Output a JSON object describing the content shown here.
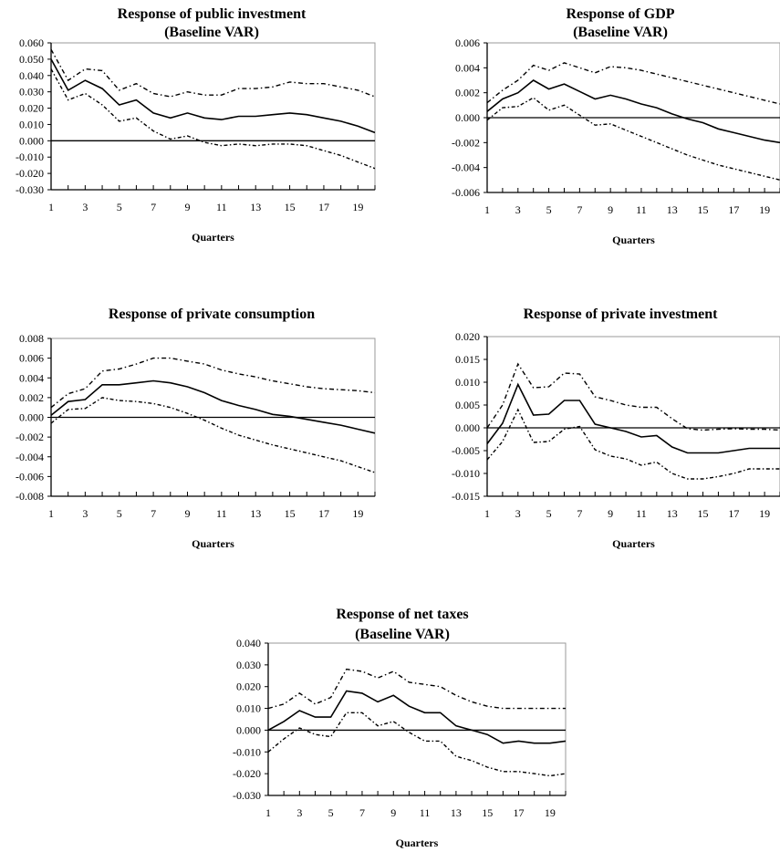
{
  "chart_data": [
    {
      "type": "line",
      "title": "Response of public investment",
      "subtitle": "(Baseline VAR)",
      "xlabel": "Quarters",
      "ylabel": "",
      "ylim": [
        -0.03,
        0.06
      ],
      "yticks": [
        "0.060",
        "0.050",
        "0.040",
        "0.030",
        "0.020",
        "0.010",
        "0.000",
        "-0.010",
        "-0.020",
        "-0.030"
      ],
      "xticks": [
        "1",
        "3",
        "5",
        "7",
        "9",
        "11",
        "13",
        "15",
        "17",
        "19"
      ],
      "x": [
        1,
        2,
        3,
        4,
        5,
        6,
        7,
        8,
        9,
        10,
        11,
        12,
        13,
        14,
        15,
        16,
        17,
        18,
        19,
        20
      ],
      "series": [
        {
          "role": "response",
          "values": [
            0.05,
            0.031,
            0.037,
            0.032,
            0.022,
            0.025,
            0.017,
            0.014,
            0.017,
            0.014,
            0.013,
            0.015,
            0.015,
            0.016,
            0.017,
            0.016,
            0.014,
            0.012,
            0.009,
            0.005
          ]
        },
        {
          "role": "upper",
          "values": [
            0.056,
            0.037,
            0.044,
            0.043,
            0.031,
            0.035,
            0.029,
            0.027,
            0.03,
            0.028,
            0.028,
            0.032,
            0.032,
            0.033,
            0.036,
            0.035,
            0.035,
            0.033,
            0.031,
            0.027
          ]
        },
        {
          "role": "lower",
          "values": [
            0.044,
            0.025,
            0.029,
            0.022,
            0.012,
            0.014,
            0.006,
            0.001,
            0.003,
            -0.001,
            -0.003,
            -0.002,
            -0.003,
            -0.002,
            -0.002,
            -0.003,
            -0.006,
            -0.009,
            -0.013,
            -0.017
          ]
        }
      ]
    },
    {
      "type": "line",
      "title": "Response of GDP",
      "subtitle": "(Baseline VAR)",
      "xlabel": "Quarters",
      "ylabel": "",
      "ylim": [
        -0.006,
        0.006
      ],
      "yticks": [
        "0.006",
        "0.004",
        "0.002",
        "0.000",
        "-0.002",
        "-0.004",
        "-0.006"
      ],
      "xticks": [
        "1",
        "3",
        "5",
        "7",
        "9",
        "11",
        "13",
        "15",
        "17",
        "19"
      ],
      "x": [
        1,
        2,
        3,
        4,
        5,
        6,
        7,
        8,
        9,
        10,
        11,
        12,
        13,
        14,
        15,
        16,
        17,
        18,
        19,
        20
      ],
      "series": [
        {
          "role": "response",
          "values": [
            0.0005,
            0.0015,
            0.002,
            0.003,
            0.0023,
            0.0027,
            0.0021,
            0.0015,
            0.0018,
            0.0015,
            0.0011,
            0.0008,
            0.0003,
            -0.0001,
            -0.0004,
            -0.0009,
            -0.0012,
            -0.0015,
            -0.0018,
            -0.002
          ]
        },
        {
          "role": "upper",
          "values": [
            0.0012,
            0.0022,
            0.003,
            0.0042,
            0.0038,
            0.0044,
            0.004,
            0.0036,
            0.0041,
            0.004,
            0.0038,
            0.0035,
            0.0032,
            0.0029,
            0.0026,
            0.0023,
            0.002,
            0.0017,
            0.0014,
            0.0011
          ]
        },
        {
          "role": "lower",
          "values": [
            -0.0002,
            0.0008,
            0.0009,
            0.0016,
            0.0006,
            0.001,
            0.0002,
            -0.0006,
            -0.0005,
            -0.001,
            -0.0015,
            -0.002,
            -0.0025,
            -0.003,
            -0.0034,
            -0.0038,
            -0.0041,
            -0.0044,
            -0.0047,
            -0.005
          ]
        }
      ]
    },
    {
      "type": "line",
      "title": "Response of private consumption",
      "xlabel": "Quarters",
      "ylabel": "",
      "ylim": [
        -0.008,
        0.008
      ],
      "yticks": [
        "0.008",
        "0.006",
        "0.004",
        "0.002",
        "0.000",
        "-0.002",
        "-0.004",
        "-0.006",
        "-0.008"
      ],
      "xticks": [
        "1",
        "3",
        "5",
        "7",
        "9",
        "11",
        "13",
        "15",
        "17",
        "19"
      ],
      "x": [
        1,
        2,
        3,
        4,
        5,
        6,
        7,
        8,
        9,
        10,
        11,
        12,
        13,
        14,
        15,
        16,
        17,
        18,
        19,
        20
      ],
      "series": [
        {
          "role": "response",
          "values": [
            0.0002,
            0.0016,
            0.0018,
            0.0033,
            0.0033,
            0.0035,
            0.0037,
            0.0035,
            0.0031,
            0.0025,
            0.0017,
            0.0012,
            0.0008,
            0.0003,
            0.0001,
            -0.0002,
            -0.0005,
            -0.0008,
            -0.0012,
            -0.0016
          ]
        },
        {
          "role": "upper",
          "values": [
            0.001,
            0.0024,
            0.0029,
            0.0047,
            0.0049,
            0.0054,
            0.006,
            0.006,
            0.0057,
            0.0054,
            0.0048,
            0.0044,
            0.0041,
            0.0037,
            0.0034,
            0.0031,
            0.0029,
            0.0028,
            0.0027,
            0.0025
          ]
        },
        {
          "role": "lower",
          "values": [
            -0.0006,
            0.0008,
            0.0009,
            0.002,
            0.0017,
            0.0016,
            0.0014,
            0.001,
            0.0004,
            -0.0003,
            -0.0011,
            -0.0018,
            -0.0023,
            -0.0028,
            -0.0032,
            -0.0036,
            -0.004,
            -0.0044,
            -0.005,
            -0.0056
          ]
        }
      ]
    },
    {
      "type": "line",
      "title": "Response of private investment",
      "xlabel": "Quarters",
      "ylabel": "",
      "ylim": [
        -0.015,
        0.02
      ],
      "yticks": [
        "0.020",
        "0.015",
        "0.010",
        "0.005",
        "0.000",
        "-0.005",
        "-0.010",
        "-0.015"
      ],
      "xticks": [
        "1",
        "3",
        "5",
        "7",
        "9",
        "11",
        "13",
        "15",
        "17",
        "19"
      ],
      "x": [
        1,
        2,
        3,
        4,
        5,
        6,
        7,
        8,
        9,
        10,
        11,
        12,
        13,
        14,
        15,
        16,
        17,
        18,
        19,
        20
      ],
      "series": [
        {
          "role": "response",
          "values": [
            -0.0035,
            0.001,
            0.0095,
            0.0028,
            0.003,
            0.006,
            0.006,
            0.0008,
            0.0,
            -0.0008,
            -0.002,
            -0.0017,
            -0.0042,
            -0.0055,
            -0.0055,
            -0.0055,
            -0.005,
            -0.0045,
            -0.0045,
            -0.0045
          ]
        },
        {
          "role": "upper",
          "values": [
            0.0,
            0.005,
            0.014,
            0.0088,
            0.009,
            0.012,
            0.0118,
            0.0068,
            0.006,
            0.005,
            0.0045,
            0.0045,
            0.002,
            -0.0002,
            -0.0005,
            -0.0003,
            -0.0002,
            -0.0003,
            -0.0003,
            -0.0005
          ]
        },
        {
          "role": "lower",
          "values": [
            -0.007,
            -0.003,
            0.004,
            -0.0032,
            -0.003,
            -0.0003,
            0.0003,
            -0.0048,
            -0.0062,
            -0.0068,
            -0.0082,
            -0.0075,
            -0.01,
            -0.0112,
            -0.0112,
            -0.0107,
            -0.01,
            -0.009,
            -0.009,
            -0.009
          ]
        }
      ]
    },
    {
      "type": "line",
      "title": "Response of net taxes",
      "subtitle": "(Baseline VAR)",
      "xlabel": "Quarters",
      "ylabel": "",
      "ylim": [
        -0.03,
        0.04
      ],
      "yticks": [
        "0.040",
        "0.030",
        "0.020",
        "0.010",
        "0.000",
        "-0.010",
        "-0.020",
        "-0.030"
      ],
      "xticks": [
        "1",
        "3",
        "5",
        "7",
        "9",
        "11",
        "13",
        "15",
        "17",
        "19"
      ],
      "x": [
        1,
        2,
        3,
        4,
        5,
        6,
        7,
        8,
        9,
        10,
        11,
        12,
        13,
        14,
        15,
        16,
        17,
        18,
        19,
        20
      ],
      "series": [
        {
          "role": "response",
          "values": [
            0.0,
            0.004,
            0.009,
            0.006,
            0.006,
            0.018,
            0.017,
            0.013,
            0.016,
            0.011,
            0.008,
            0.008,
            0.002,
            0.0,
            -0.002,
            -0.006,
            -0.005,
            -0.006,
            -0.006,
            -0.005
          ]
        },
        {
          "role": "upper",
          "values": [
            0.01,
            0.012,
            0.017,
            0.012,
            0.015,
            0.028,
            0.027,
            0.024,
            0.027,
            0.022,
            0.021,
            0.02,
            0.016,
            0.013,
            0.011,
            0.01,
            0.01,
            0.01,
            0.01,
            0.01
          ]
        },
        {
          "role": "lower",
          "values": [
            -0.01,
            -0.004,
            0.001,
            -0.002,
            -0.003,
            0.008,
            0.008,
            0.002,
            0.004,
            -0.001,
            -0.005,
            -0.005,
            -0.012,
            -0.014,
            -0.017,
            -0.019,
            -0.019,
            -0.02,
            -0.021,
            -0.02
          ]
        }
      ]
    }
  ]
}
